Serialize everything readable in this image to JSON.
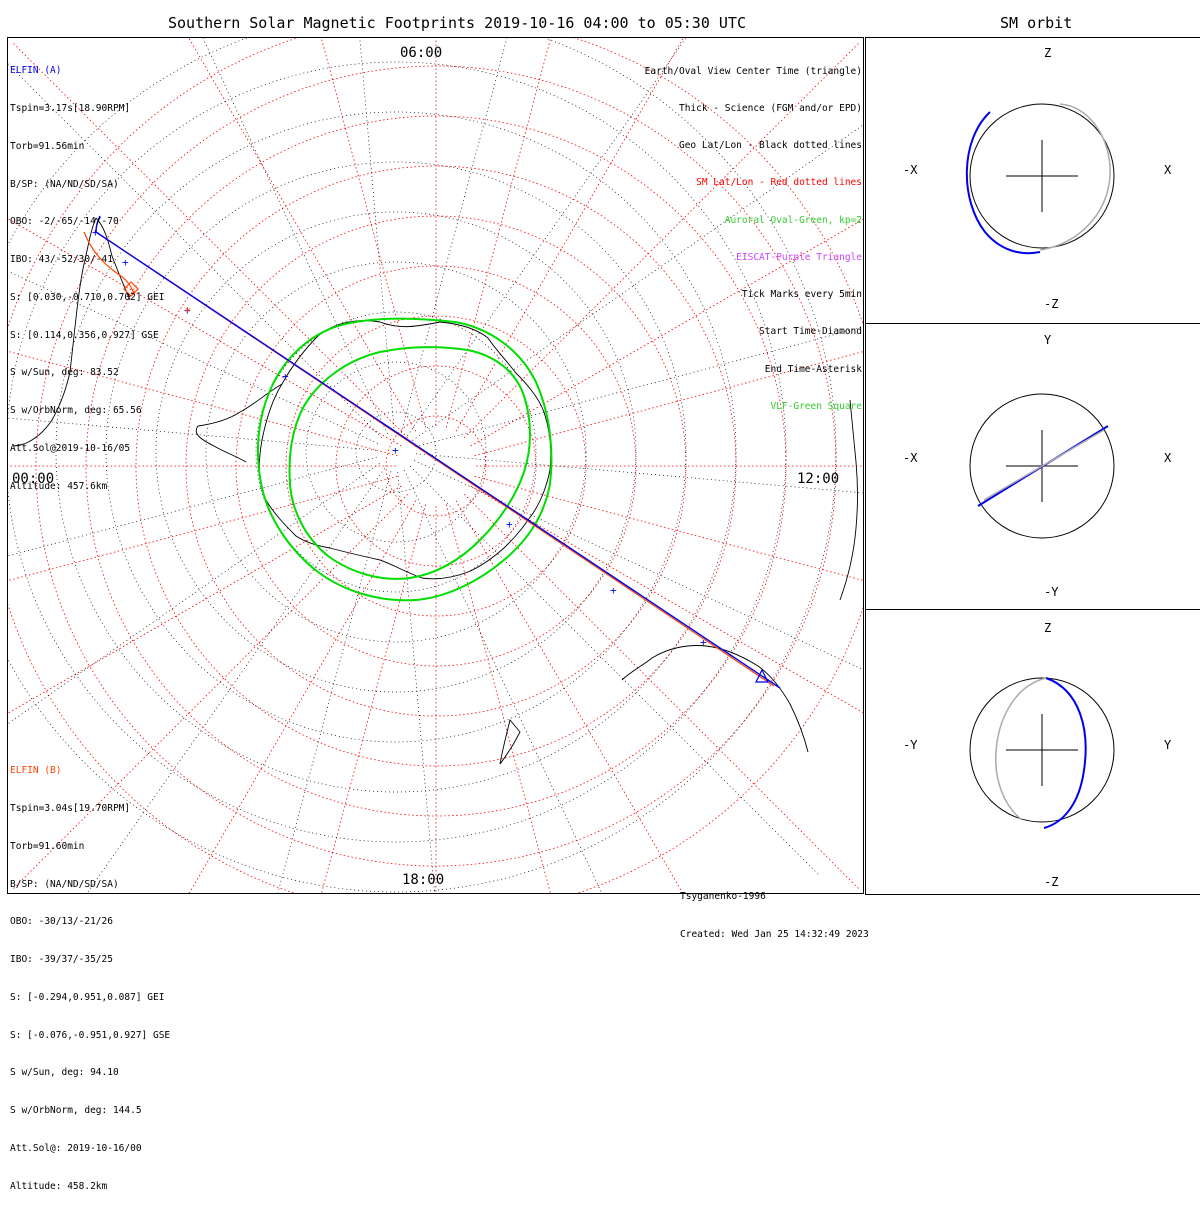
{
  "title": "Southern Solar Magnetic Footprints 2019-10-16 04:00 to 05:30 UTC",
  "orbit_title": "SM orbit",
  "colors": {
    "elfin_a": "#0000ee",
    "elfin_b": "#ff4500",
    "geo_grid": "#000000",
    "sm_grid": "#ff0000",
    "auroral_oval": "#00dd00",
    "eiscat": "#cc44ff",
    "orbit_gray": "#aaaaaa"
  },
  "elfin_a": {
    "name": "ELFIN (A)",
    "lines": [
      "Tspin=3.17s[18.90RPM]",
      "Torb=91.56min",
      "B/SP: (NA/ND/SD/SA)",
      "OBO: -2/-65/-14/-70",
      "IBO: 43/-52/30/-41",
      "S: [0.030,-0.710,0.702] GEI",
      "S: [0.114,0.356,0.927] GSE",
      "S w/Sun, deg: 83.52",
      "S w/OrbNorm, deg: 65.56",
      "Att.Sol@2019-10-16/05",
      "Altitude: 457.6km"
    ]
  },
  "elfin_b": {
    "name": "ELFIN (B)",
    "lines": [
      "Tspin=3.04s[19.70RPM]",
      "Torb=91.60min",
      "B/SP: (NA/ND/SD/SA)",
      "OBO: -30/13/-21/26",
      "IBO: -39/37/-35/25",
      "S: [-0.294,0.951,0.087] GEI",
      "S: [-0.076,-0.951,0.927] GSE",
      "S w/Sun, deg: 94.10",
      "S w/OrbNorm, deg: 144.5",
      "Att.Sol@: 2019-10-16/00",
      "Altitude: 458.2km"
    ]
  },
  "legend": [
    {
      "text": "Earth/Oval View Center Time (triangle)",
      "color": "#000000"
    },
    {
      "text": "Thick - Science (FGM and/or EPD)",
      "color": "#000000"
    },
    {
      "text": "Geo Lat/Lon - Black dotted lines",
      "color": "#000000"
    },
    {
      "text": "SM Lat/Lon - Red dotted lines",
      "color": "#ff0000"
    },
    {
      "text": "Auroral Oval-Green, kp=2",
      "color": "#33cc33"
    },
    {
      "text": "EISCAT-Purple Triangle",
      "color": "#cc44ff"
    },
    {
      "text": "Tick Marks every 5min",
      "color": "#000000"
    },
    {
      "text": "Start Time-Diamond",
      "color": "#000000"
    },
    {
      "text": "End Time-Asterisk",
      "color": "#000000"
    },
    {
      "text": "VLF-Green Square",
      "color": "#33cc33"
    }
  ],
  "mlt_labels": {
    "top": "06:00",
    "left": "00:00",
    "right": "12:00",
    "bottom": "18:00"
  },
  "credits": {
    "model": "Tsyganenko-1996",
    "created": "Created: Wed Jan 25 14:32:49 2023"
  },
  "orbit_panels": [
    {
      "top": "Z",
      "bottom": "-Z",
      "left": "-X",
      "right": "X"
    },
    {
      "top": "Y",
      "bottom": "-Y",
      "left": "-X",
      "right": "X"
    },
    {
      "top": "Z",
      "bottom": "-Z",
      "left": "-Y",
      "right": "Y"
    }
  ]
}
